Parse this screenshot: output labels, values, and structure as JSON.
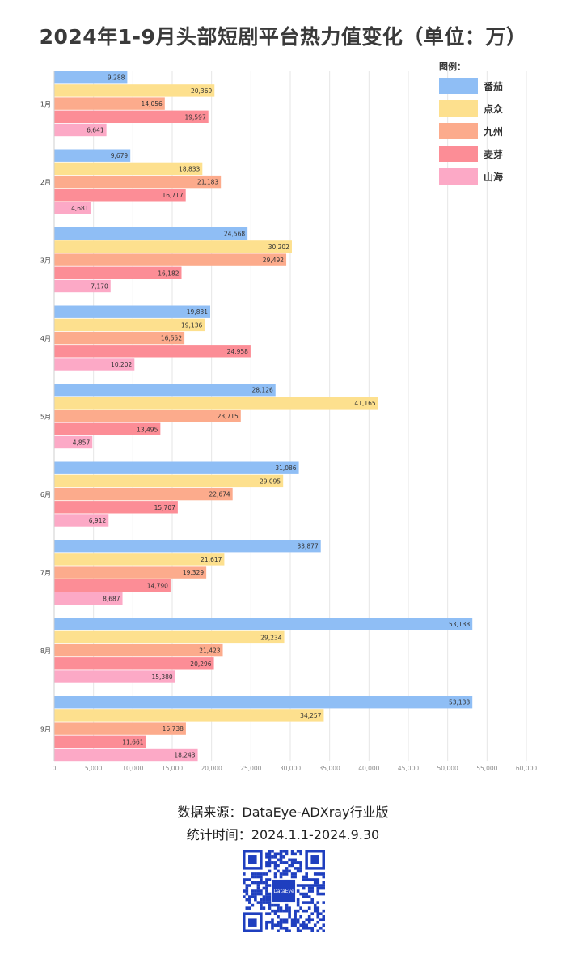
{
  "title": "2024年1-9月头部短剧平台热力值变化（单位：万）",
  "footer": {
    "source": "数据来源：DataEye-ADXray行业版",
    "period": "统计时间：2024.1.1-2024.9.30"
  },
  "qr": {
    "center_label": "DataEye",
    "center_color": "#1f3fbf",
    "module_color": "#1f3fbf"
  },
  "chart_data": {
    "type": "bar",
    "orientation": "horizontal",
    "title": "2024年1-9月头部短剧平台热力值变化（单位：万）",
    "legend_title": "图例：",
    "legend_position": "top-right",
    "categories": [
      "1月",
      "2月",
      "3月",
      "4月",
      "5月",
      "6月",
      "7月",
      "8月",
      "9月"
    ],
    "series": [
      {
        "name": "番茄",
        "color": "#8fbef5",
        "values": [
          9288,
          9679,
          24568,
          19831,
          28126,
          31086,
          33877,
          53138,
          53138
        ]
      },
      {
        "name": "点众",
        "color": "#fde08e",
        "values": [
          20369,
          18833,
          30202,
          19136,
          41165,
          29095,
          21617,
          29234,
          34257
        ]
      },
      {
        "name": "九州",
        "color": "#fcab8c",
        "values": [
          14056,
          21183,
          29492,
          16552,
          23715,
          22674,
          19329,
          21423,
          16738
        ]
      },
      {
        "name": "麦芽",
        "color": "#fc8d96",
        "values": [
          19597,
          16717,
          16182,
          24958,
          13495,
          15707,
          14790,
          20296,
          11661
        ]
      },
      {
        "name": "山海",
        "color": "#fca9c6",
        "values": [
          6641,
          4681,
          7170,
          10202,
          4857,
          6912,
          8687,
          15380,
          18243
        ]
      }
    ],
    "xlim": [
      0,
      60000
    ],
    "xticks": [
      "0",
      "5,000",
      "10,000",
      "15,000",
      "20,000",
      "25,000",
      "30,000",
      "35,000",
      "40,000",
      "45,000",
      "50,000",
      "55,000",
      "60,000"
    ],
    "grid": true,
    "data_labels": [
      "9,288",
      "20,369",
      "14,056",
      "19,597",
      "6,641",
      "9,679",
      "18,833",
      "21,183",
      "16,717",
      "4,681",
      "24,568",
      "30,202",
      "29,492",
      "16,182",
      "7,170",
      "19,831",
      "19,136",
      "16,552",
      "24,958",
      "10,202",
      "28,126",
      "41,165",
      "23,715",
      "13,495",
      "4,857",
      "31,086",
      "29,095",
      "22,674",
      "15,707",
      "6,912",
      "33,877",
      "21,617",
      "19,329",
      "14,790",
      "8,687",
      "53,138",
      "29,234",
      "21,423",
      "20,296",
      "15,380",
      "53,138",
      "34,257",
      "16,738",
      "11,661",
      "18,243"
    ]
  }
}
